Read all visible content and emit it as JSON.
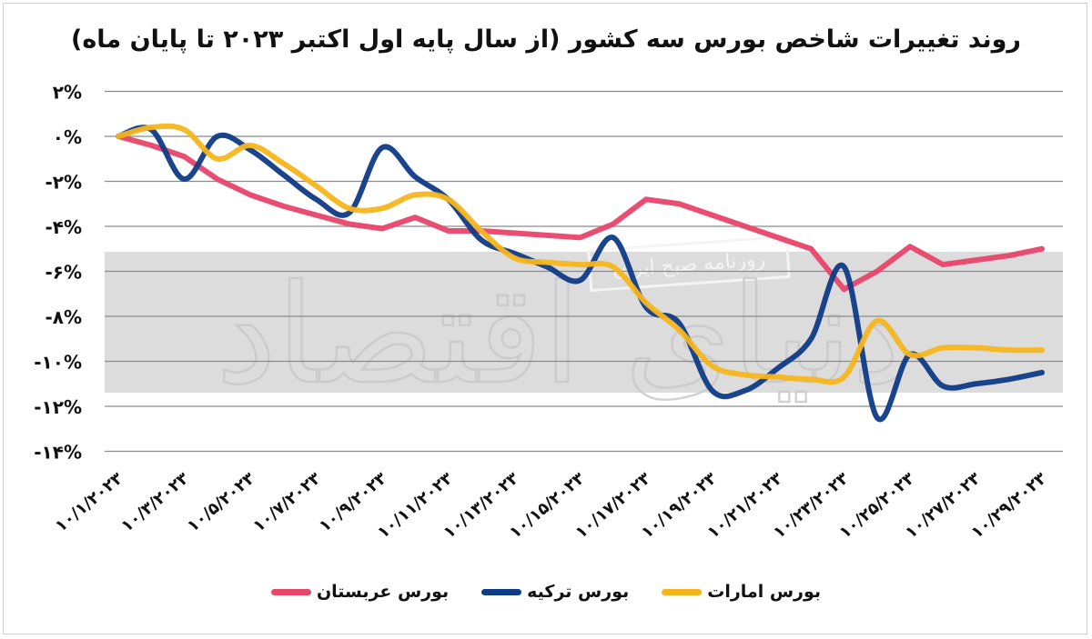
{
  "title": "روند تغییرات شاخص بورس سه کشور (از سال پایه اول اکتبر ۲۰۲۳ تا پایان ماه)",
  "watermark": {
    "logo_text": "دنیای اقتصاد",
    "stamp_text": "روزنامه صبح ایران"
  },
  "legend": [
    {
      "name": "بورس امارات",
      "color": "#F6B51C"
    },
    {
      "name": "بورس ترکیه",
      "color": "#0E3B86"
    },
    {
      "name": "بورس عربستان",
      "color": "#E8456A"
    }
  ],
  "chart_data": {
    "type": "line",
    "title": "روند تغییرات شاخص بورس سه کشور (از سال پایه اول اکتبر ۲۰۲۳ تا پایان ماه)",
    "xlabel": "",
    "ylabel": "",
    "ylim": [
      -14,
      2
    ],
    "grid": true,
    "legend_position": "bottom",
    "y_ticks": [
      "۲%",
      "۰%",
      "-۲%",
      "-۴%",
      "-۶%",
      "-۸%",
      "-۱۰%",
      "-۱۲%",
      "-۱۴%"
    ],
    "y_tick_values": [
      2,
      0,
      -2,
      -4,
      -6,
      -8,
      -10,
      -12,
      -14
    ],
    "x_ticks": [
      "۱۰/۱/۲۰۲۳",
      "۱۰/۳/۲۰۲۳",
      "۱۰/۵/۲۰۲۳",
      "۱۰/۷/۲۰۲۳",
      "۱۰/۹/۲۰۲۳",
      "۱۰/۱۱/۲۰۲۳",
      "۱۰/۱۳/۲۰۲۳",
      "۱۰/۱۵/۲۰۲۳",
      "۱۰/۱۷/۲۰۲۳",
      "۱۰/۱۹/۲۰۲۳",
      "۱۰/۲۱/۲۰۲۳",
      "۱۰/۲۳/۲۰۲۳",
      "۱۰/۲۵/۲۰۲۳",
      "۱۰/۲۷/۲۰۲۳",
      "۱۰/۲۹/۲۰۲۳"
    ],
    "x": [
      "10/1",
      "10/2",
      "10/3",
      "10/4",
      "10/5",
      "10/6",
      "10/7",
      "10/8",
      "10/9",
      "10/10",
      "10/11",
      "10/12",
      "10/13",
      "10/14",
      "10/15",
      "10/16",
      "10/17",
      "10/18",
      "10/19",
      "10/20",
      "10/21",
      "10/22",
      "10/23",
      "10/24",
      "10/25",
      "10/26",
      "10/27",
      "10/28",
      "10/29"
    ],
    "series": [
      {
        "name": "بورس عربستان",
        "color": "#E8456A",
        "values": [
          0,
          -0.4,
          -0.9,
          -1.9,
          -2.6,
          -3.1,
          -3.5,
          -3.9,
          -4.1,
          -3.6,
          -4.2,
          -4.2,
          -4.3,
          -4.4,
          -4.5,
          -3.9,
          -2.8,
          -3.0,
          -3.5,
          -4.0,
          -4.5,
          -5.0,
          -6.8,
          -6.0,
          -4.9,
          -5.7,
          -5.5,
          -5.3,
          -5.0
        ]
      },
      {
        "name": "بورس ترکیه",
        "color": "#0E3B86",
        "values": [
          0,
          0.3,
          -1.9,
          0.0,
          -0.6,
          -1.7,
          -2.8,
          -3.4,
          -0.5,
          -1.8,
          -2.8,
          -4.6,
          -5.2,
          -5.8,
          -6.4,
          -4.5,
          -7.6,
          -8.3,
          -11.3,
          -11.3,
          -10.3,
          -9.0,
          -5.8,
          -12.5,
          -9.7,
          -11.1,
          -11.0,
          -10.8,
          -10.5
        ]
      },
      {
        "name": "بورس امارات",
        "color": "#F6B51C",
        "values": [
          0,
          0.4,
          0.3,
          -1.0,
          -0.4,
          -1.2,
          -2.2,
          -3.2,
          -3.2,
          -2.6,
          -2.8,
          -4.2,
          -5.4,
          -5.6,
          -5.7,
          -5.8,
          -7.4,
          -8.6,
          -10.2,
          -10.6,
          -10.7,
          -10.8,
          -10.7,
          -8.2,
          -9.7,
          -9.4,
          -9.4,
          -9.5,
          -9.5
        ]
      }
    ]
  }
}
